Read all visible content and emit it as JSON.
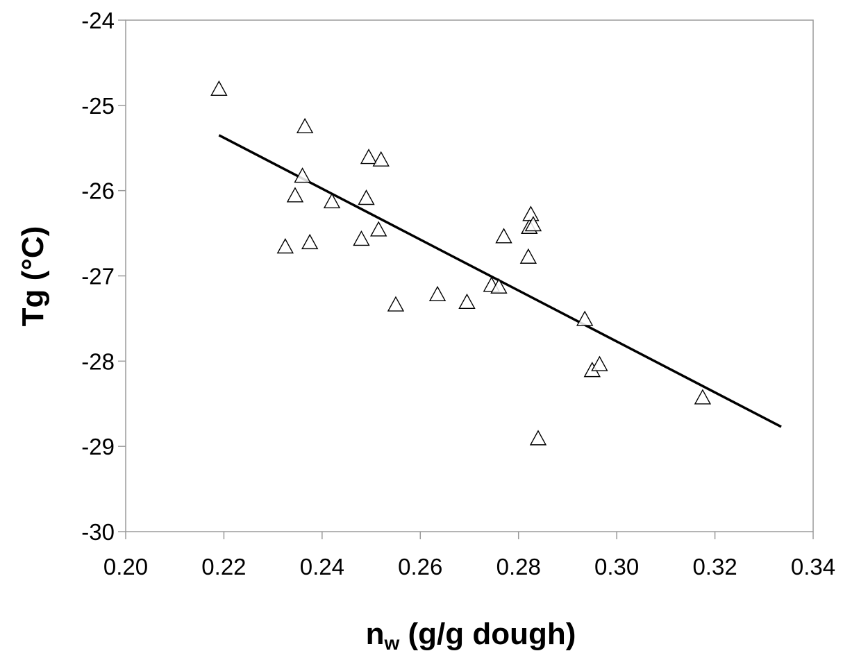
{
  "chart_data": {
    "type": "scatter",
    "title": "",
    "xlabel": "n",
    "xlabel_subscript": "w",
    "xlabel_rest": " (g/g dough)",
    "ylabel": "Tg (°C)",
    "xlim": [
      0.2,
      0.34
    ],
    "ylim": [
      -30,
      -24
    ],
    "x_ticks": [
      0.2,
      0.22,
      0.24,
      0.26,
      0.28,
      0.3,
      0.32,
      0.34
    ],
    "x_tick_labels": [
      "0.20",
      "0.22",
      "0.24",
      "0.26",
      "0.28",
      "0.30",
      "0.32",
      "0.34"
    ],
    "y_ticks": [
      -24,
      -25,
      -26,
      -27,
      -28,
      -29,
      -30
    ],
    "y_tick_labels": [
      "-24",
      "-25",
      "-26",
      "-27",
      "-28",
      "-29",
      "-30"
    ],
    "grid": false,
    "legend": "none",
    "marker": "open-triangle",
    "marker_color": "#000000",
    "line_color": "#000000",
    "series": [
      {
        "points": [
          {
            "x": 0.219,
            "y": -24.8
          },
          {
            "x": 0.2325,
            "y": -26.65
          },
          {
            "x": 0.2345,
            "y": -26.05
          },
          {
            "x": 0.236,
            "y": -25.82
          },
          {
            "x": 0.2365,
            "y": -25.24
          },
          {
            "x": 0.2375,
            "y": -26.6
          },
          {
            "x": 0.242,
            "y": -26.12
          },
          {
            "x": 0.248,
            "y": -26.56
          },
          {
            "x": 0.249,
            "y": -26.08
          },
          {
            "x": 0.2495,
            "y": -25.6
          },
          {
            "x": 0.2515,
            "y": -26.45
          },
          {
            "x": 0.252,
            "y": -25.63
          },
          {
            "x": 0.255,
            "y": -27.33
          },
          {
            "x": 0.2635,
            "y": -27.21
          },
          {
            "x": 0.2695,
            "y": -27.3
          },
          {
            "x": 0.2745,
            "y": -27.1
          },
          {
            "x": 0.276,
            "y": -27.12
          },
          {
            "x": 0.277,
            "y": -26.53
          },
          {
            "x": 0.282,
            "y": -26.77
          },
          {
            "x": 0.2822,
            "y": -26.42
          },
          {
            "x": 0.2825,
            "y": -26.27
          },
          {
            "x": 0.283,
            "y": -26.39
          },
          {
            "x": 0.284,
            "y": -28.9
          },
          {
            "x": 0.2935,
            "y": -27.5
          },
          {
            "x": 0.295,
            "y": -28.1
          },
          {
            "x": 0.2965,
            "y": -28.03
          },
          {
            "x": 0.3175,
            "y": -28.42
          }
        ]
      }
    ],
    "trendline": {
      "x": [
        0.219,
        0.3335
      ],
      "y": [
        -25.35,
        -28.77
      ]
    }
  }
}
